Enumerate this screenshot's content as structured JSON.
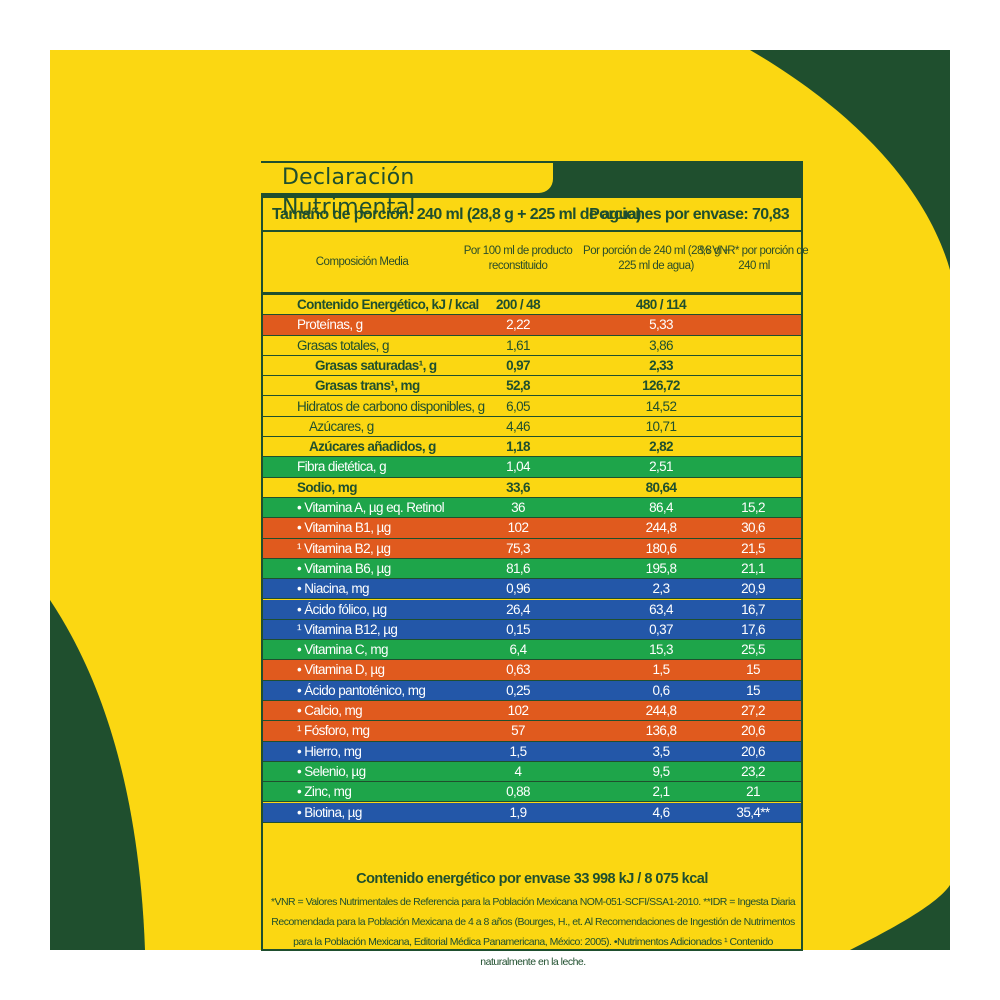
{
  "label": {
    "title": "Declaración Nutrimental",
    "serving_size": "Tamaño de porción: 240 ml (28,8 g + 225 ml de agua)",
    "servings_per_container": "Porciones por envase: 70,83",
    "columns": [
      "Composición Media",
      "Por 100 ml de producto reconstituido",
      "Por porción de 240 ml (28,8 g + 225 ml de agua)",
      "% VNR* por porción de 240 ml"
    ],
    "rows": [
      {
        "name": "Contenido Energético, kJ / kcal",
        "per100": "200 / 48",
        "perServing": "480 / 114",
        "vnr": "",
        "bg": "#fbd712",
        "bold": true,
        "indent": 0
      },
      {
        "name": "Proteínas, g",
        "per100": "2,22",
        "perServing": "5,33",
        "vnr": "",
        "bg": "#e05a1e",
        "bold": false,
        "indent": 0
      },
      {
        "name": "Grasas totales, g",
        "per100": "1,61",
        "perServing": "3,86",
        "vnr": "",
        "bg": "#fbd712",
        "bold": false,
        "indent": 0
      },
      {
        "name": "Grasas saturadas¹, g",
        "per100": "0,97",
        "perServing": "2,33",
        "vnr": "",
        "bg": "#fbd712",
        "bold": true,
        "indent": 1
      },
      {
        "name": "Grasas trans¹, mg",
        "per100": "52,8",
        "perServing": "126,72",
        "vnr": "",
        "bg": "#fbd712",
        "bold": true,
        "indent": 1
      },
      {
        "name": "Hidratos de carbono disponibles, g",
        "per100": "6,05",
        "perServing": "14,52",
        "vnr": "",
        "bg": "#fbd712",
        "bold": false,
        "indent": 0
      },
      {
        "name": "Azúcares, g",
        "per100": "4,46",
        "perServing": "10,71",
        "vnr": "",
        "bg": "#fbd712",
        "bold": false,
        "indent": 2
      },
      {
        "name": "Azúcares añadidos, g",
        "per100": "1,18",
        "perServing": "2,82",
        "vnr": "",
        "bg": "#fbd712",
        "bold": true,
        "indent": 2
      },
      {
        "name": "Fibra dietética, g",
        "per100": "1,04",
        "perServing": "2,51",
        "vnr": "",
        "bg": "#1ea54a",
        "bold": false,
        "indent": 0
      },
      {
        "name": "Sodio, mg",
        "per100": "33,6",
        "perServing": "80,64",
        "vnr": "",
        "bg": "#fbd712",
        "bold": true,
        "indent": 0
      },
      {
        "name": "• Vitamina A, µg eq. Retinol",
        "per100": "36",
        "perServing": "86,4",
        "vnr": "15,2",
        "bg": "#1ea54a",
        "bold": false,
        "indent": 0
      },
      {
        "name": "• Vitamina B1, µg",
        "per100": "102",
        "perServing": "244,8",
        "vnr": "30,6",
        "bg": "#e05a1e",
        "bold": false,
        "indent": 0
      },
      {
        "name": "¹ Vitamina B2, µg",
        "per100": "75,3",
        "perServing": "180,6",
        "vnr": "21,5",
        "bg": "#e05a1e",
        "bold": false,
        "indent": 0
      },
      {
        "name": "• Vitamina B6, µg",
        "per100": "81,6",
        "perServing": "195,8",
        "vnr": "21,1",
        "bg": "#1ea54a",
        "bold": false,
        "indent": 0
      },
      {
        "name": "• Niacina, mg",
        "per100": "0,96",
        "perServing": "2,3",
        "vnr": "20,9",
        "bg": "#2357a8",
        "bold": false,
        "indent": 0
      },
      {
        "name": "• Ácido fólico, µg",
        "per100": "26,4",
        "perServing": "63,4",
        "vnr": "16,7",
        "bg": "#2357a8",
        "bold": false,
        "indent": 0
      },
      {
        "name": "¹ Vitamina B12, µg",
        "per100": "0,15",
        "perServing": "0,37",
        "vnr": "17,6",
        "bg": "#2357a8",
        "bold": false,
        "indent": 0
      },
      {
        "name": "• Vitamina C, mg",
        "per100": "6,4",
        "perServing": "15,3",
        "vnr": "25,5",
        "bg": "#1ea54a",
        "bold": false,
        "indent": 0
      },
      {
        "name": "• Vitamina D, µg",
        "per100": "0,63",
        "perServing": "1,5",
        "vnr": "15",
        "bg": "#e05a1e",
        "bold": false,
        "indent": 0
      },
      {
        "name": "• Ácido pantoténico, mg",
        "per100": "0,25",
        "perServing": "0,6",
        "vnr": "15",
        "bg": "#2357a8",
        "bold": false,
        "indent": 0
      },
      {
        "name": "• Calcio, mg",
        "per100": "102",
        "perServing": "244,8",
        "vnr": "27,2",
        "bg": "#e05a1e",
        "bold": false,
        "indent": 0
      },
      {
        "name": "¹ Fósforo, mg",
        "per100": "57",
        "perServing": "136,8",
        "vnr": "20,6",
        "bg": "#e05a1e",
        "bold": false,
        "indent": 0
      },
      {
        "name": "• Hierro, mg",
        "per100": "1,5",
        "perServing": "3,5",
        "vnr": "20,6",
        "bg": "#2357a8",
        "bold": false,
        "indent": 0
      },
      {
        "name": "• Selenio, µg",
        "per100": "4",
        "perServing": "9,5",
        "vnr": "23,2",
        "bg": "#1ea54a",
        "bold": false,
        "indent": 0
      },
      {
        "name": "• Zinc, mg",
        "per100": "0,88",
        "perServing": "2,1",
        "vnr": "21",
        "bg": "#1ea54a",
        "bold": false,
        "indent": 0
      },
      {
        "name": "• Biotina, µg",
        "per100": "1,9",
        "perServing": "4,6",
        "vnr": "35,4**",
        "bg": "#2357a8",
        "bold": false,
        "indent": 0
      }
    ],
    "energy_total": "Contenido energético por envase 33 998 kJ / 8 075 kcal",
    "footnote": "*VNR = Valores Nutrimentales de Referencia para la Población Mexicana NOM-051-SCFI/SSA1-2010. **IDR = Ingesta Diaria Recomendada para la Población Mexicana de 4 a 8 años (Bourges, H., et. Al Recomendaciones de Ingestión de Nutrimentos para la Población Mexicana, Editorial Médica Panamericana, México: 2005). •Nutrimentos Adicionados ¹ Contenido naturalmente en la leche."
  },
  "colors": {
    "background": "#fbd712",
    "dark_green": "#1f4f2e",
    "orange": "#e05a1e",
    "green": "#1ea54a",
    "blue": "#2357a8"
  }
}
